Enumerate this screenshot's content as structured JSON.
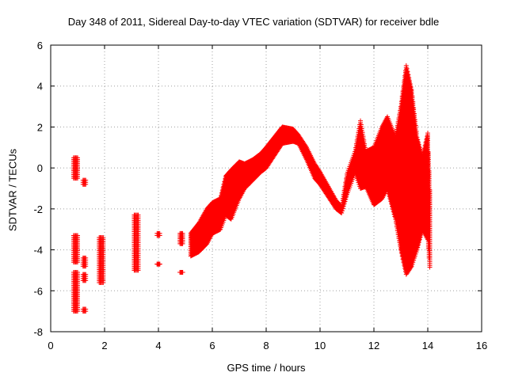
{
  "chart_data": {
    "type": "scatter",
    "title": "Day 348 of 2011, Sidereal Day-to-day VTEC variation (SDTVAR) for receiver bdle",
    "xlabel": "GPS time / hours",
    "ylabel": "SDTVAR / TECUs",
    "xlim": [
      0,
      16
    ],
    "ylim": [
      -8,
      6
    ],
    "xticks": [
      0,
      2,
      4,
      6,
      8,
      10,
      12,
      14,
      16
    ],
    "yticks": [
      -8,
      -6,
      -4,
      -2,
      0,
      2,
      4,
      6
    ],
    "grid": true,
    "marker": "+",
    "series": [
      {
        "name": "SDTVAR",
        "color": "#ff0000",
        "segments": [
          {
            "x0": 0.85,
            "x1": 1.0,
            "y_min": -0.5,
            "y_max": 0.5
          },
          {
            "x0": 0.85,
            "x1": 1.0,
            "y_min": -4.6,
            "y_max": -3.3
          },
          {
            "x0": 0.85,
            "x1": 1.0,
            "y_min": -7.0,
            "y_max": -5.1
          },
          {
            "x0": 1.2,
            "x1": 1.3,
            "y_min": -0.8,
            "y_max": -0.6
          },
          {
            "x0": 1.2,
            "x1": 1.3,
            "y_min": -4.8,
            "y_max": -4.4
          },
          {
            "x0": 1.2,
            "x1": 1.3,
            "y_min": -5.5,
            "y_max": -5.2
          },
          {
            "x0": 1.2,
            "x1": 1.3,
            "y_min": -7.0,
            "y_max": -6.9
          },
          {
            "x0": 1.8,
            "x1": 1.95,
            "y_min": -5.6,
            "y_max": -3.4
          },
          {
            "x0": 3.1,
            "x1": 3.25,
            "y_min": -5.0,
            "y_max": -2.3
          },
          {
            "x0": 3.95,
            "x1": 4.05,
            "y_min": -3.3,
            "y_max": -3.2
          },
          {
            "x0": 3.95,
            "x1": 4.05,
            "y_min": -4.7,
            "y_max": -4.7
          },
          {
            "x0": 4.8,
            "x1": 4.9,
            "y_min": -3.7,
            "y_max": -3.2
          },
          {
            "x0": 4.8,
            "x1": 4.9,
            "y_min": -5.1,
            "y_max": -5.1
          }
        ],
        "trace": [
          [
            5.2,
            -4.3,
            -3.2
          ],
          [
            5.5,
            -4.1,
            -2.7
          ],
          [
            5.8,
            -3.7,
            -2.0
          ],
          [
            6.0,
            -3.2,
            -1.7
          ],
          [
            6.3,
            -3.0,
            -1.5
          ],
          [
            6.5,
            -2.3,
            -0.4
          ],
          [
            6.7,
            -2.5,
            -0.1
          ],
          [
            7.0,
            -1.5,
            0.3
          ],
          [
            7.2,
            -1.0,
            0.2
          ],
          [
            7.5,
            -0.6,
            0.4
          ],
          [
            7.8,
            -0.2,
            0.7
          ],
          [
            8.0,
            0.0,
            1.0
          ],
          [
            8.3,
            0.6,
            1.5
          ],
          [
            8.6,
            1.2,
            2.0
          ],
          [
            9.0,
            1.3,
            1.9
          ],
          [
            9.2,
            1.2,
            1.6
          ],
          [
            9.5,
            0.4,
            1.0
          ],
          [
            9.8,
            -0.5,
            0.2
          ],
          [
            10.0,
            -0.8,
            -0.2
          ],
          [
            10.3,
            -1.4,
            -0.9
          ],
          [
            10.6,
            -2.0,
            -1.6
          ],
          [
            10.8,
            -2.2,
            -1.9
          ],
          [
            11.0,
            -1.3,
            -0.3
          ],
          [
            11.3,
            -0.2,
            0.8
          ],
          [
            11.5,
            -1.0,
            2.3
          ],
          [
            11.7,
            -0.9,
            0.8
          ],
          [
            12.0,
            -1.8,
            1.0
          ],
          [
            12.3,
            -1.5,
            2.0
          ],
          [
            12.5,
            -1.0,
            2.5
          ],
          [
            12.8,
            -2.5,
            1.5
          ],
          [
            13.0,
            -4.0,
            3.0
          ],
          [
            13.2,
            -5.2,
            5.0
          ],
          [
            13.4,
            -4.8,
            3.8
          ],
          [
            13.6,
            -4.0,
            1.5
          ],
          [
            13.8,
            -3.0,
            0.5
          ],
          [
            14.0,
            -3.5,
            1.7
          ],
          [
            14.1,
            -5.3,
            -2.0
          ]
        ]
      }
    ]
  }
}
